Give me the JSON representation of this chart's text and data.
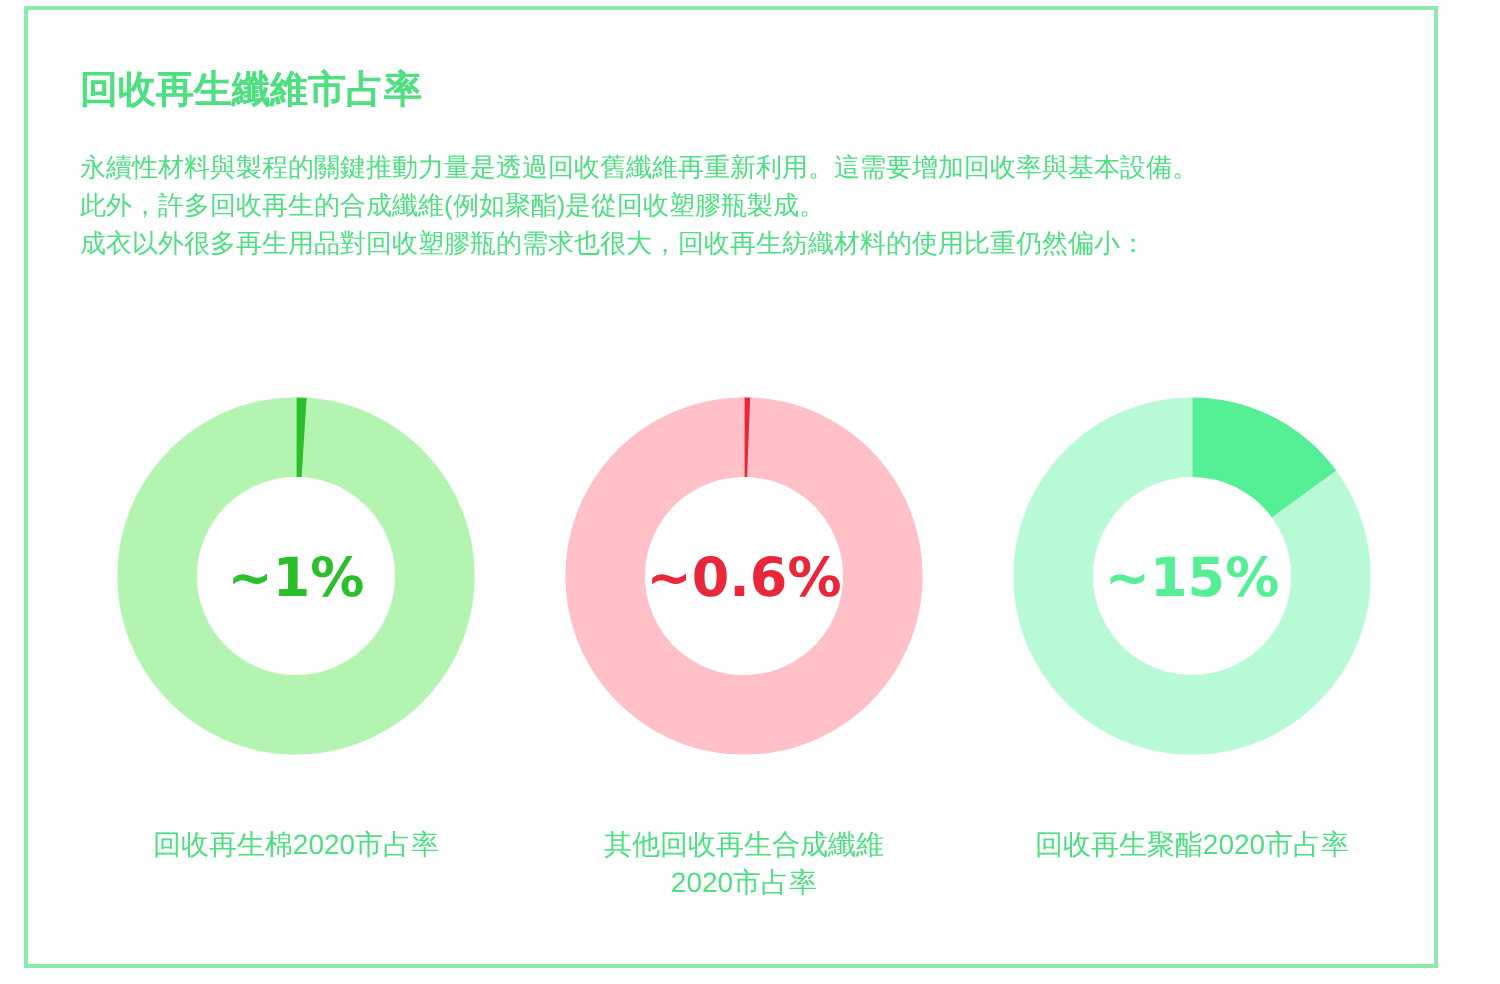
{
  "chart_data": [
    {
      "type": "other",
      "title": "回收再生纖維市占率",
      "annotations": [
        "永續性材料與製程的關鍵推動力量是透過回收舊纖維再重新利用。這需要增加回收率與基本設備。",
        "此外，許多回收再生的合成纖維(例如聚酯)是從回收塑膠瓶製成。",
        "成衣以外很多再生用品對回收塑膠瓶的需求也很大，回收再生紡織材料的使用比重仍然偏小："
      ]
    },
    {
      "type": "donut",
      "categories": [
        null,
        null
      ],
      "values": [
        1,
        99
      ],
      "colors": [
        "#2cbf2c",
        "#b3f5b0"
      ],
      "annotations": [
        "~1%"
      ],
      "xlabel": "回收再生棉2020市占率"
    },
    {
      "type": "donut",
      "categories": [
        null,
        null
      ],
      "values": [
        0.6,
        99.4
      ],
      "colors": [
        "#e8283a",
        "#ffc0c8"
      ],
      "annotations": [
        "~0.6%"
      ],
      "xlabel": "其他回收再生合成纖維2020市占率"
    },
    {
      "type": "donut",
      "categories": [
        null,
        null
      ],
      "values": [
        15,
        85
      ],
      "colors": [
        "#55ef95",
        "#b8fad6"
      ],
      "annotations": [
        "~15%"
      ],
      "xlabel": "回收再生聚酯2020市占率"
    }
  ]
}
